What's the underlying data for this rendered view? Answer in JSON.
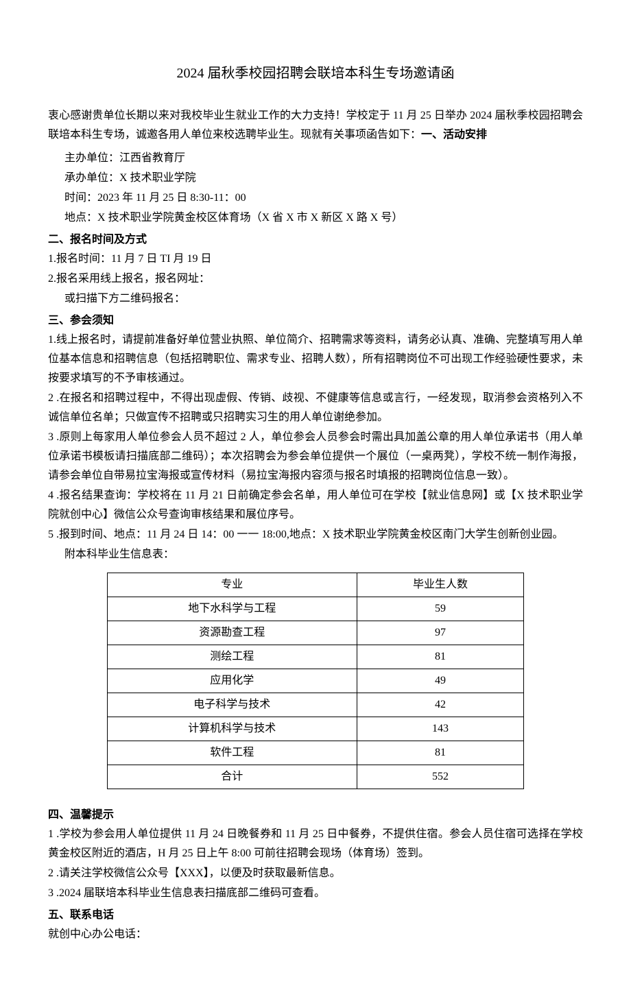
{
  "title": "2024 届秋季校园招聘会联培本科生专场邀请函",
  "intro": {
    "text_part1": "衷心感谢贵单位长期以来对我校毕业生就业工作的大力支持！学校定于 11 月 25 日举办 2024 届秋季校园招聘会联培本科生专场，诚邀各用人单位来校选聘毕业生。现就有关事项函告如下：",
    "section1_heading": "一、活动安排"
  },
  "event": {
    "host_label": "主办单位：",
    "host_value": "江西省教育厅",
    "organizer_label": "承办单位：",
    "organizer_value": "X 技术职业学院",
    "time_label": "时间：",
    "time_value": "2023 年 11 月 25 日 8:30-11：00",
    "venue_label": "地点：",
    "venue_value": "X 技术职业学院黄金校区体育场（X 省 X 市 X 新区 X 路 X 号）"
  },
  "section2": {
    "heading": "二、报名时间及方式",
    "item1": "1.报名时间：11 月 7 日 TI 月 19 日",
    "item2": "2.报名采用线上报名，报名网址：",
    "item2b": "或扫描下方二维码报名："
  },
  "section3": {
    "heading": "三、参会须知",
    "item1": "1.线上报名时，请提前准备好单位营业执照、单位简介、招聘需求等资料，请务必认真、准确、完整填写用人单位基本信息和招聘信息（包括招聘职位、需求专业、招聘人数），所有招聘岗位不可出现工作经验硬性要求，未按要求填写的不予审核通过。",
    "item2": "2 .在报名和招聘过程中，不得出现虚假、传销、歧视、不健康等信息或言行，一经发现，取消参会资格列入不诚信单位名单；只做宣传不招聘或只招聘实习生的用人单位谢绝参加。",
    "item3": "3 .原则上每家用人单位参会人员不超过 2 人，单位参会人员参会时需出具加盖公章的用人单位承诺书（用人单位承诺书模板请扫描底部二维码）；本次招聘会为参会单位提供一个展位（一桌两凳），学校不统一制作海报，请参会单位自带易拉宝海报或宣传材料（易拉宝海报内容须与报名时填报的招聘岗位信息一致）。",
    "item4": "4 .报名结果查询：学校将在 11 月 21 日前确定参会名单，用人单位可在学校【就业信息网】或【X 技术职业学院就创中心】微信公众号查询审核结果和展位序号。",
    "item5": "5 .报到时间、地点：11 月 24 日 14：00 一一 18:00,地点：X 技术职业学院黄金校区南门大学生创新创业园。",
    "attach": "附本科毕业生信息表："
  },
  "table": {
    "headers": {
      "major": "专业",
      "count": "毕业生人数"
    },
    "rows": [
      {
        "major": "地下水科学与工程",
        "count": "59"
      },
      {
        "major": "资源勘查工程",
        "count": "97"
      },
      {
        "major": "测绘工程",
        "count": "81"
      },
      {
        "major": "应用化学",
        "count": "49"
      },
      {
        "major": "电子科学与技术",
        "count": "42"
      },
      {
        "major": "计算机科学与技术",
        "count": "143"
      },
      {
        "major": "软件工程",
        "count": "81"
      },
      {
        "major": "合计",
        "count": "552"
      }
    ]
  },
  "section4": {
    "heading": "四、温馨提示",
    "item1": "1 .学校为参会用人单位提供 11 月 24 日晚餐券和 11 月 25 日中餐券，不提供住宿。参会人员住宿可选择在学校黄金校区附近的酒店，H 月 25 日上午 8:00 可前往招聘会现场（体育场）签到。",
    "item2": "2 .请关注学校微信公众号【XXX】，以便及时获取最新信息。",
    "item3": "3 .2024 届联培本科毕业生信息表扫描底部二维码可查看。"
  },
  "section5": {
    "heading": "五、联系电话",
    "line1": "就创中心办公电话："
  }
}
